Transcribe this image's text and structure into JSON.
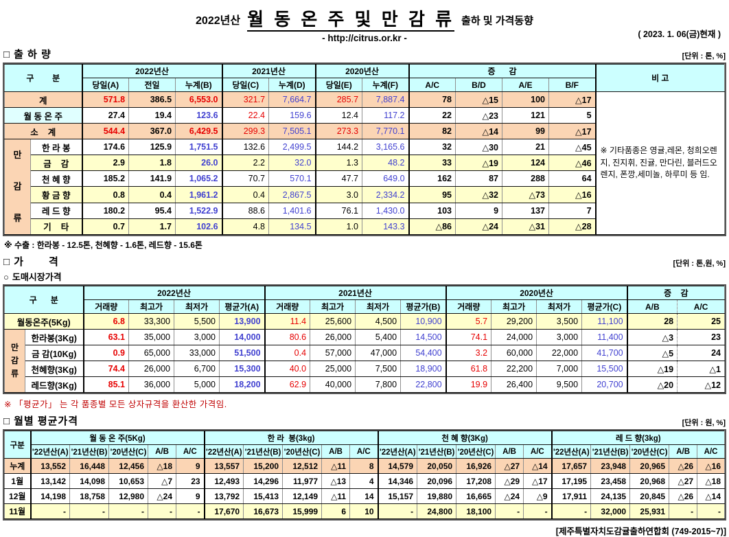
{
  "icons": {
    "square": "□",
    "circle": "○"
  },
  "colors": {
    "red_value": "#e60000",
    "blue_value": "#4040d0",
    "black_value": "#000000",
    "header_bg": "#ccffff",
    "peach_bg": "#fbd5b4",
    "yellow_bg": "#ffffcc",
    "lightcyan_bg": "#e0ffff",
    "footnote_red": "#c00000"
  },
  "meta": {
    "title_year": "2022년산",
    "title_main": "월 동 온 주 및 만 감 류",
    "title_sub": "출하 및 가격동향",
    "url": "- http://citrus.or.kr -",
    "date": "( 2023. 1. 06(금)현재 )",
    "footer": "[제주특별자치도감귤출하연합회 (749-2015~7)]"
  },
  "shipment": {
    "section_title": "출 하 량",
    "unit": "[단위 : 톤, %]",
    "header": {
      "gubun": "구        분",
      "y2022": "2022년산",
      "y2021": "2021년산",
      "y2020": "2020년산",
      "change": "증      감",
      "remark_title": "비 고",
      "cols": [
        "당일(A)",
        "전일",
        "누계(B)",
        "당일(C)",
        "누계(D)",
        "당일(E)",
        "누계(F)",
        "A/C",
        "B/D",
        "A/E",
        "B/F"
      ]
    },
    "group_chars": [
      "만",
      "감",
      "류"
    ],
    "remark": "※ 기타품종은 영귤,레몬, 청희오렌지, 진지휘, 진귤, 만다린, 블러드오렌지, 폰깡,세미놀, 하루미 등 임.",
    "footnote": "※ 수출 : 한라봉 - 12.5톤, 천혜향 - 1.6톤, 레드향 - 15.6톤",
    "rows": [
      {
        "label": "계",
        "merged": true,
        "row_bg": "peach",
        "label_bg": "peach",
        "cells": [
          "571.8",
          "386.5",
          "6,553.0",
          "321.7",
          "7,664.7",
          "285.7",
          "7,887.4",
          "78",
          "△15",
          "100",
          "△17"
        ],
        "colors": [
          "r",
          "k",
          "r",
          "r",
          "b",
          "r",
          "b",
          "k",
          "k",
          "k",
          "k"
        ]
      },
      {
        "label": "월 동 온 주",
        "merged": true,
        "row_bg": "white",
        "label_bg": "cyan",
        "cells": [
          "27.4",
          "19.4",
          "123.6",
          "22.4",
          "159.6",
          "12.4",
          "117.2",
          "22",
          "△23",
          "121",
          "5"
        ],
        "colors": [
          "k",
          "k",
          "b",
          "r",
          "b",
          "k",
          "b",
          "k",
          "k",
          "k",
          "k"
        ]
      },
      {
        "label": "소    계",
        "merged": true,
        "row_bg": "peach",
        "label_bg": "peach",
        "cells": [
          "544.4",
          "367.0",
          "6,429.5",
          "299.3",
          "7,505.1",
          "273.3",
          "7,770.1",
          "82",
          "△14",
          "99",
          "△17"
        ],
        "colors": [
          "r",
          "k",
          "r",
          "r",
          "b",
          "r",
          "b",
          "k",
          "k",
          "k",
          "k"
        ]
      },
      {
        "label": "한 라 봉",
        "merged": false,
        "group_start": true,
        "row_bg": "white",
        "label_bg": "white",
        "cells": [
          "174.6",
          "125.9",
          "1,751.5",
          "132.6",
          "2,499.5",
          "144.2",
          "3,165.6",
          "32",
          "△30",
          "21",
          "△45"
        ],
        "colors": [
          "k",
          "k",
          "b",
          "k",
          "b",
          "k",
          "b",
          "k",
          "k",
          "k",
          "k"
        ]
      },
      {
        "label": "금    감",
        "merged": false,
        "row_bg": "yellow",
        "label_bg": "yellow",
        "cells": [
          "2.9",
          "1.8",
          "26.0",
          "2.2",
          "32.0",
          "1.3",
          "48.2",
          "33",
          "△19",
          "124",
          "△46"
        ],
        "colors": [
          "k",
          "k",
          "b",
          "k",
          "b",
          "k",
          "b",
          "k",
          "k",
          "k",
          "k"
        ]
      },
      {
        "label": "천 혜 향",
        "merged": false,
        "row_bg": "white",
        "label_bg": "white",
        "cells": [
          "185.2",
          "141.9",
          "1,065.2",
          "70.7",
          "570.1",
          "47.7",
          "649.0",
          "162",
          "87",
          "288",
          "64"
        ],
        "colors": [
          "k",
          "k",
          "b",
          "k",
          "b",
          "k",
          "b",
          "k",
          "k",
          "k",
          "k"
        ]
      },
      {
        "label": "황 금 향",
        "merged": false,
        "row_bg": "yellow",
        "label_bg": "yellow",
        "cells": [
          "0.8",
          "0.4",
          "1,961.2",
          "0.4",
          "2,867.5",
          "3.0",
          "2,334.2",
          "95",
          "△32",
          "△73",
          "△16"
        ],
        "colors": [
          "k",
          "k",
          "b",
          "k",
          "b",
          "k",
          "b",
          "k",
          "k",
          "k",
          "k"
        ]
      },
      {
        "label": "레 드 향",
        "merged": false,
        "row_bg": "white",
        "label_bg": "white",
        "cells": [
          "180.2",
          "95.4",
          "1,522.9",
          "88.6",
          "1,401.6",
          "76.1",
          "1,430.0",
          "103",
          "9",
          "137",
          "7"
        ],
        "colors": [
          "k",
          "k",
          "b",
          "k",
          "b",
          "k",
          "b",
          "k",
          "k",
          "k",
          "k"
        ]
      },
      {
        "label": "기    타",
        "merged": false,
        "row_bg": "yellow",
        "label_bg": "yellow",
        "cells": [
          "0.7",
          "1.7",
          "102.6",
          "4.8",
          "134.5",
          "1.0",
          "143.3",
          "△86",
          "△24",
          "△31",
          "△28"
        ],
        "colors": [
          "k",
          "k",
          "b",
          "k",
          "b",
          "k",
          "b",
          "k",
          "k",
          "k",
          "k"
        ]
      }
    ]
  },
  "price": {
    "section_title": "가       격",
    "sub_title": "도매시장가격",
    "unit": "[단위 : 톤,원, %]",
    "header": {
      "gubun": "구      분",
      "y2022": "2022년산",
      "y2021": "2021년산",
      "y2020": "2020년산",
      "change": "증    감",
      "cols2022": [
        "거래량",
        "최고가",
        "최저가",
        "평균가(A)"
      ],
      "cols2021": [
        "거래량",
        "최고가",
        "최저가",
        "평균가(B)"
      ],
      "cols2020": [
        "거래량",
        "최고가",
        "최저가",
        "평균가(C)"
      ],
      "change_cols": [
        "A/B",
        "A/C"
      ]
    },
    "group_chars": [
      "만",
      "감",
      "류"
    ],
    "color_pattern": [
      "r",
      "k",
      "k",
      "b",
      "r",
      "k",
      "k",
      "b",
      "r",
      "k",
      "k",
      "b",
      "k",
      "k"
    ],
    "footnote": "※  「평균가」 는 각 품종별 모든 상자규격을 환산한 가격임.",
    "rows": [
      {
        "label": "월동온주(5Kg)",
        "merged": true,
        "row_bg": "yellow",
        "label_bg": "yellow",
        "cells": [
          "6.8",
          "33,300",
          "5,500",
          "13,900",
          "11.4",
          "25,600",
          "4,500",
          "10,900",
          "5.7",
          "29,200",
          "3,500",
          "11,100",
          "28",
          "25"
        ]
      },
      {
        "label": "한라봉(3Kg)",
        "merged": false,
        "group_start": true,
        "row_bg": "white",
        "label_bg": "white",
        "cells": [
          "63.1",
          "35,000",
          "3,000",
          "14,000",
          "80.6",
          "26,000",
          "5,400",
          "14,500",
          "74.1",
          "24,000",
          "3,000",
          "11,400",
          "△3",
          "23"
        ]
      },
      {
        "label": "금 감(10Kg)",
        "merged": false,
        "row_bg": "white",
        "label_bg": "white",
        "cells": [
          "0.9",
          "65,000",
          "33,000",
          "51,500",
          "0.4",
          "57,000",
          "47,000",
          "54,400",
          "3.2",
          "60,000",
          "22,000",
          "41,700",
          "△5",
          "24"
        ]
      },
      {
        "label": "천혜향(3Kg)",
        "merged": false,
        "row_bg": "white",
        "label_bg": "white",
        "cells": [
          "74.4",
          "26,000",
          "6,700",
          "15,300",
          "40.0",
          "25,000",
          "7,500",
          "18,900",
          "61.8",
          "22,200",
          "7,000",
          "15,500",
          "△19",
          "△1"
        ]
      },
      {
        "label": "레드향(3Kg)",
        "merged": false,
        "row_bg": "white",
        "label_bg": "white",
        "cells": [
          "85.1",
          "36,000",
          "5,000",
          "18,200",
          "62.9",
          "40,000",
          "7,800",
          "22,800",
          "19.9",
          "26,400",
          "9,500",
          "20,700",
          "△20",
          "△12"
        ]
      }
    ]
  },
  "monthly": {
    "section_title": "월별 평균가격",
    "unit": "[단위 : 원, %]",
    "header": {
      "gubun": "구분",
      "groups": [
        "월 동 온 주(5Kg)",
        "한 라  봉(3kg)",
        "천 혜 향(3Kg)",
        "레 드 향(3kg)"
      ],
      "cols": [
        "'22년산(A)",
        "'21년산(B)",
        "'20년산(C)",
        "A/B",
        "A/C"
      ]
    },
    "rows": [
      {
        "label": "누계",
        "row_bg": "peach",
        "cells": [
          "13,552",
          "16,448",
          "12,456",
          "△18",
          "9",
          "13,557",
          "15,200",
          "12,512",
          "△11",
          "8",
          "14,579",
          "20,050",
          "16,926",
          "△27",
          "△14",
          "17,657",
          "23,948",
          "20,965",
          "△26",
          "△16"
        ]
      },
      {
        "label": "1월",
        "row_bg": "white",
        "cells": [
          "13,142",
          "14,098",
          "10,653",
          "△7",
          "23",
          "12,493",
          "14,296",
          "11,977",
          "△13",
          "4",
          "14,346",
          "20,096",
          "17,208",
          "△29",
          "△17",
          "17,195",
          "23,458",
          "20,968",
          "△27",
          "△18"
        ]
      },
      {
        "label": "12월",
        "row_bg": "white",
        "cells": [
          "14,198",
          "18,758",
          "12,980",
          "△24",
          "9",
          "13,792",
          "15,413",
          "12,149",
          "△11",
          "14",
          "15,157",
          "19,880",
          "16,665",
          "△24",
          "△9",
          "17,911",
          "24,135",
          "20,845",
          "△26",
          "△14"
        ]
      },
      {
        "label": "11월",
        "row_bg": "yellow",
        "cells": [
          "-",
          "-",
          "-",
          "-",
          "-",
          "17,670",
          "16,673",
          "15,999",
          "6",
          "10",
          "-",
          "24,800",
          "18,100",
          "-",
          "-",
          "-",
          "32,000",
          "25,931",
          "-",
          "-"
        ]
      }
    ]
  }
}
